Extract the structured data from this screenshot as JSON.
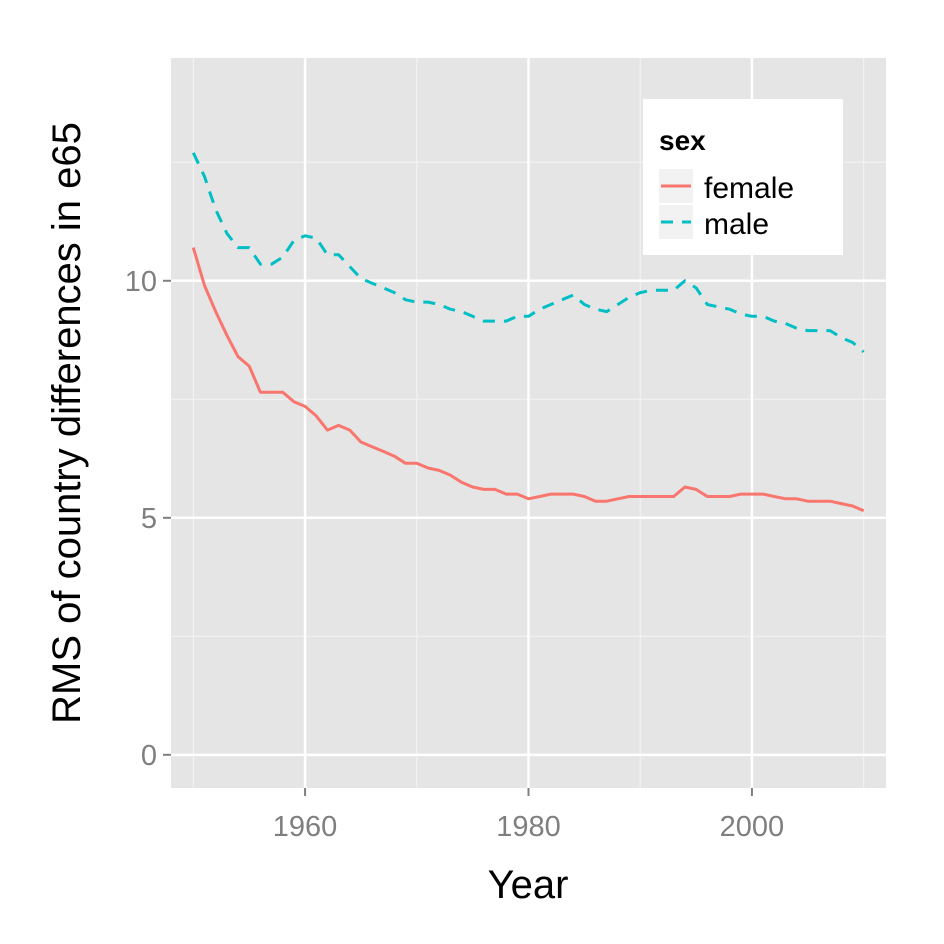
{
  "chart_data": {
    "type": "line",
    "title": "",
    "xlabel": "Year",
    "ylabel": "RMS of country differences in e65",
    "xlim": [
      1948,
      2012
    ],
    "ylim": [
      -0.7,
      14.7
    ],
    "x_ticks": [
      1960,
      1980,
      2000
    ],
    "x_minor_ticks": [
      1950,
      1970,
      1990,
      2010
    ],
    "y_ticks": [
      0,
      5,
      10
    ],
    "y_minor_ticks": [
      2.5,
      7.5,
      12.5
    ],
    "grid": true,
    "background": "#e5e5e5",
    "legend": {
      "title": "sex",
      "position": "top-right"
    },
    "series": [
      {
        "name": "female",
        "color": "#f8766d",
        "dash": "solid",
        "x": [
          1950,
          1951,
          1952,
          1953,
          1954,
          1955,
          1956,
          1957,
          1958,
          1959,
          1960,
          1961,
          1962,
          1963,
          1964,
          1965,
          1966,
          1967,
          1968,
          1969,
          1970,
          1971,
          1972,
          1973,
          1974,
          1975,
          1976,
          1977,
          1978,
          1979,
          1980,
          1981,
          1982,
          1983,
          1984,
          1985,
          1986,
          1987,
          1988,
          1989,
          1990,
          1991,
          1992,
          1993,
          1994,
          1995,
          1996,
          1997,
          1998,
          1999,
          2000,
          2001,
          2002,
          2003,
          2004,
          2005,
          2006,
          2007,
          2008,
          2009,
          2010
        ],
        "values": [
          10.7,
          9.9,
          9.35,
          8.85,
          8.4,
          8.2,
          7.65,
          7.65,
          7.65,
          7.45,
          7.35,
          7.15,
          6.85,
          6.95,
          6.85,
          6.6,
          6.5,
          6.4,
          6.3,
          6.15,
          6.15,
          6.05,
          6.0,
          5.9,
          5.75,
          5.65,
          5.6,
          5.6,
          5.5,
          5.5,
          5.4,
          5.45,
          5.5,
          5.5,
          5.5,
          5.45,
          5.35,
          5.35,
          5.4,
          5.45,
          5.45,
          5.45,
          5.45,
          5.45,
          5.65,
          5.6,
          5.45,
          5.45,
          5.45,
          5.5,
          5.5,
          5.5,
          5.45,
          5.4,
          5.4,
          5.35,
          5.35,
          5.35,
          5.3,
          5.25,
          5.15
        ]
      },
      {
        "name": "male",
        "color": "#00bfc4",
        "dash": "dashed",
        "x": [
          1950,
          1951,
          1952,
          1953,
          1954,
          1955,
          1956,
          1957,
          1958,
          1959,
          1960,
          1961,
          1962,
          1963,
          1964,
          1965,
          1966,
          1967,
          1968,
          1969,
          1970,
          1971,
          1972,
          1973,
          1974,
          1975,
          1976,
          1977,
          1978,
          1979,
          1980,
          1981,
          1982,
          1983,
          1984,
          1985,
          1986,
          1987,
          1988,
          1989,
          1990,
          1991,
          1992,
          1993,
          1994,
          1995,
          1996,
          1997,
          1998,
          1999,
          2000,
          2001,
          2002,
          2003,
          2004,
          2005,
          2006,
          2007,
          2008,
          2009,
          2010
        ],
        "values": [
          12.7,
          12.2,
          11.5,
          11.0,
          10.7,
          10.7,
          10.35,
          10.35,
          10.5,
          10.85,
          10.95,
          10.9,
          10.55,
          10.55,
          10.3,
          10.05,
          9.95,
          9.85,
          9.75,
          9.6,
          9.55,
          9.55,
          9.5,
          9.4,
          9.35,
          9.25,
          9.15,
          9.15,
          9.15,
          9.25,
          9.25,
          9.4,
          9.5,
          9.6,
          9.7,
          9.5,
          9.4,
          9.35,
          9.5,
          9.65,
          9.75,
          9.8,
          9.8,
          9.8,
          10.0,
          9.85,
          9.5,
          9.45,
          9.4,
          9.3,
          9.25,
          9.25,
          9.15,
          9.1,
          9.0,
          8.95,
          8.95,
          8.95,
          8.8,
          8.7,
          8.5
        ]
      }
    ]
  }
}
